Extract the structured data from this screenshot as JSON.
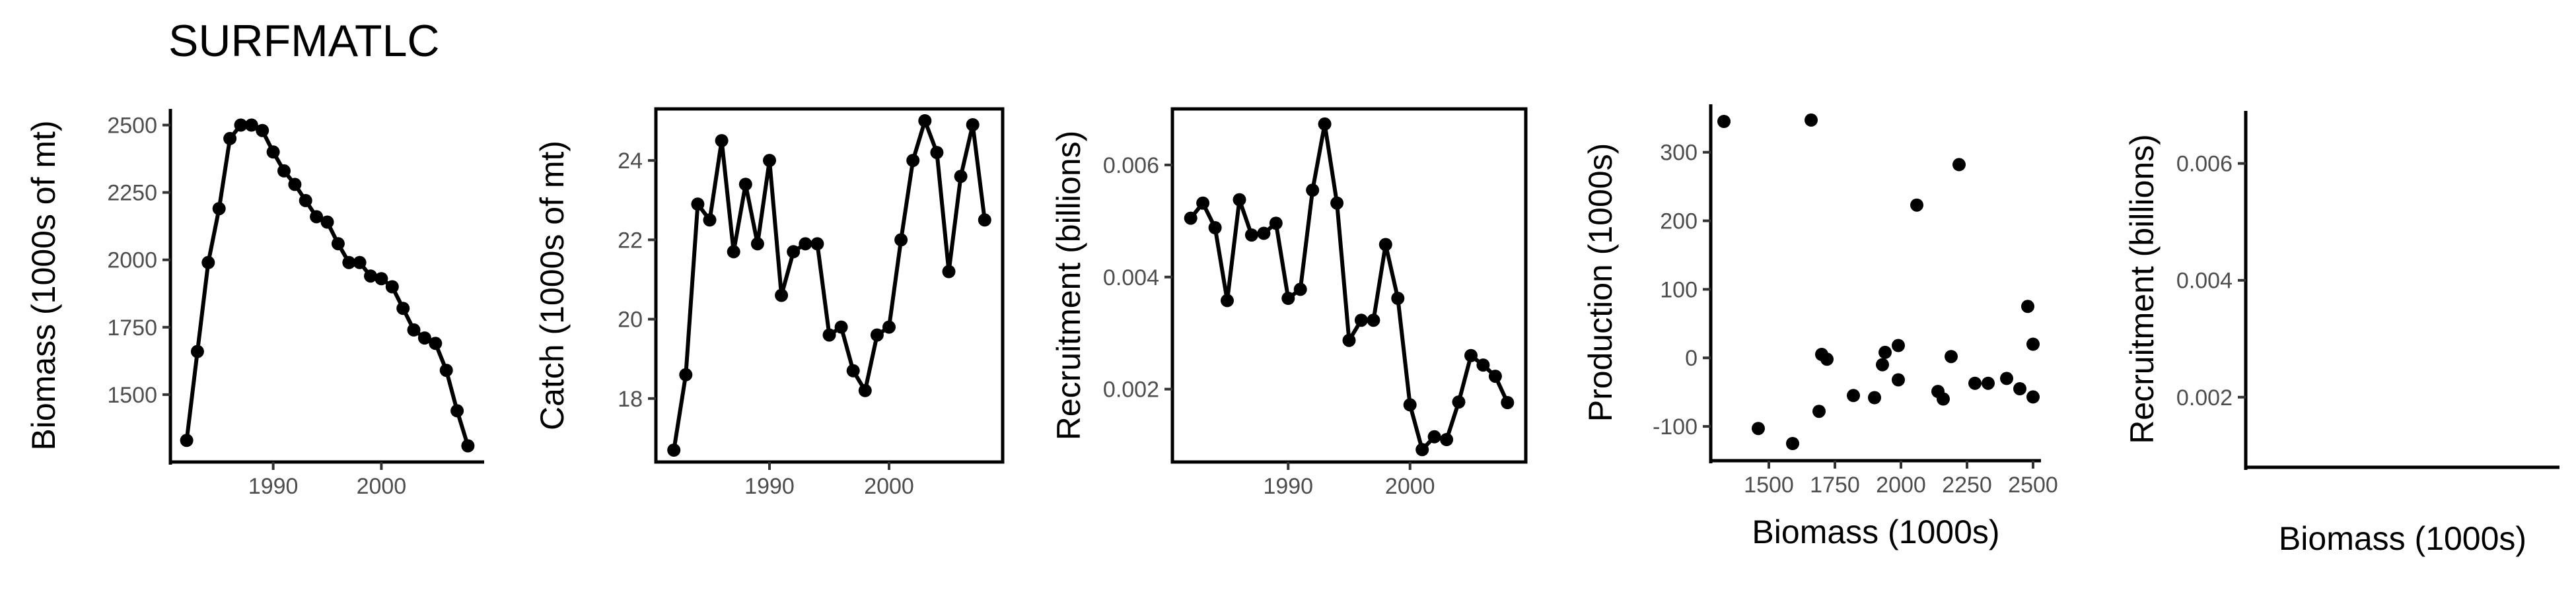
{
  "title": "SURFMATLC",
  "chart_data": [
    {
      "type": "line",
      "xlabel": "",
      "ylabel": "Biomass (1000s of mt)",
      "xlim": [
        1980.5,
        2009.5
      ],
      "ylim": [
        1250,
        2560
      ],
      "xticks": [
        1990,
        2000
      ],
      "yticks": [
        1500,
        1750,
        2000,
        2250,
        2500
      ],
      "x": [
        1982,
        1983,
        1984,
        1985,
        1986,
        1987,
        1988,
        1989,
        1990,
        1991,
        1992,
        1993,
        1994,
        1995,
        1996,
        1997,
        1998,
        1999,
        2000,
        2001,
        2002,
        2003,
        2004,
        2005,
        2006,
        2007,
        2008
      ],
      "y": [
        1330,
        1660,
        1990,
        2190,
        2450,
        2500,
        2500,
        2480,
        2400,
        2330,
        2280,
        2220,
        2160,
        2140,
        2060,
        1990,
        1990,
        1940,
        1930,
        1900,
        1820,
        1740,
        1710,
        1690,
        1590,
        1440,
        1310
      ]
    },
    {
      "type": "line",
      "xlabel": "",
      "ylabel": "Catch (1000s of mt)",
      "xlim": [
        1980.5,
        2009.5
      ],
      "ylim": [
        16.4,
        25.3
      ],
      "xticks": [
        1990,
        2000
      ],
      "yticks": [
        18,
        20,
        22,
        24
      ],
      "x": [
        1982,
        1983,
        1984,
        1985,
        1986,
        1987,
        1988,
        1989,
        1990,
        1991,
        1992,
        1993,
        1994,
        1995,
        1996,
        1997,
        1998,
        1999,
        2000,
        2001,
        2002,
        2003,
        2004,
        2005,
        2006,
        2007,
        2008
      ],
      "y": [
        16.7,
        18.6,
        22.9,
        22.5,
        24.5,
        21.7,
        23.4,
        21.9,
        24.0,
        20.6,
        21.7,
        21.9,
        21.9,
        19.6,
        19.8,
        18.7,
        18.2,
        19.6,
        19.8,
        22.0,
        24.0,
        25.0,
        24.2,
        21.2,
        23.6,
        24.9,
        22.5
      ]
    },
    {
      "type": "line",
      "xlabel": "",
      "ylabel": "Recruitment (billions)",
      "xlim": [
        1980.5,
        2009.5
      ],
      "ylim": [
        0.0007,
        0.007
      ],
      "xticks": [
        1990,
        2000
      ],
      "yticks": [
        0.002,
        0.004,
        0.006
      ],
      "ytick_labels": [
        "0.002",
        "0.004",
        "0.006"
      ],
      "x": [
        1982,
        1983,
        1984,
        1985,
        1986,
        1987,
        1988,
        1989,
        1990,
        1991,
        1992,
        1993,
        1994,
        1995,
        1996,
        1997,
        1998,
        1999,
        2000,
        2001,
        2002,
        2003,
        2004,
        2005,
        2006,
        2007,
        2008
      ],
      "y": [
        0.00505,
        0.00532,
        0.00488,
        0.00358,
        0.00538,
        0.00475,
        0.00478,
        0.00496,
        0.00362,
        0.00378,
        0.00555,
        0.00673,
        0.00532,
        0.00287,
        0.00323,
        0.00323,
        0.00458,
        0.00362,
        0.00172,
        0.00092,
        0.00115,
        0.0011,
        0.00177,
        0.0026,
        0.00243,
        0.00223,
        0.00176
      ]
    },
    {
      "type": "scatter",
      "xlabel": "Biomass (1000s)",
      "ylabel": "Production (1000s)",
      "xlim": [
        1280,
        2530
      ],
      "ylim": [
        -150,
        370
      ],
      "xticks": [
        1500,
        1750,
        2000,
        2250,
        2500
      ],
      "yticks": [
        -100,
        0,
        100,
        200,
        300
      ],
      "x": [
        1330,
        1460,
        1590,
        1660,
        1690,
        1700,
        1720,
        1820,
        1900,
        1930,
        1940,
        1990,
        1990,
        2060,
        2140,
        2160,
        2190,
        2220,
        2280,
        2330,
        2400,
        2450,
        2480,
        2500,
        2500
      ],
      "y": [
        345,
        -103,
        -125,
        347,
        -78,
        5,
        -2,
        -55,
        -58,
        -10,
        8,
        -32,
        18,
        223,
        -49,
        -60,
        2,
        282,
        -37,
        -37,
        -30,
        -45,
        75,
        -57,
        20
      ]
    },
    {
      "type": "scatter",
      "xlabel": "Biomass (1000s)",
      "ylabel": "Recruitment (billions)",
      "ylim": [
        0.0008,
        0.0069
      ],
      "yticks": [
        0.002,
        0.004,
        0.006
      ],
      "ytick_labels": [
        "0.002",
        "0.004",
        "0.006"
      ],
      "x": [],
      "y": []
    }
  ]
}
